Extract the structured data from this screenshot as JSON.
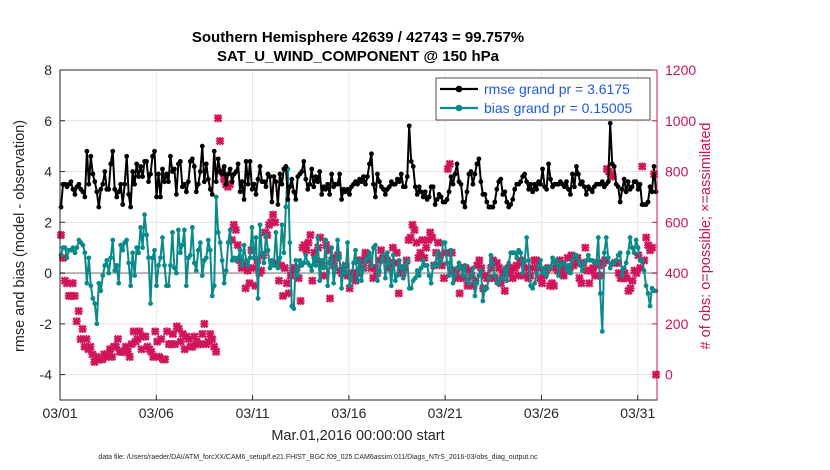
{
  "chart_data": {
    "type": "line",
    "title": "Southern Hemisphere 42639 / 42743 = 99.757%",
    "subtitle": "SAT_U_WIND_COMPONENT @ 150 hPa",
    "xlabel": "Mar.01,2016 00:00:00 start",
    "ylabel": "rmse and bias (model - observation)",
    "ylabel_right": "# of obs: o=possible; ×=assimilated",
    "footnote": "data file: /Users/raeder/DAI/ATM_forcXX/CAM6_setup/f.e21.FHIST_BGC.f09_025.CAM6assim.011/Diags_NTrS_2016-03/obs_diag_output.nc",
    "x_ticks": [
      "03/01",
      "03/06",
      "03/11",
      "03/16",
      "03/21",
      "03/26",
      "03/31"
    ],
    "x_tick_days": [
      1,
      6,
      11,
      16,
      21,
      26,
      31
    ],
    "xlim_days": [
      1,
      32
    ],
    "ylim": [
      -5,
      8
    ],
    "y_ticks": [
      -4,
      -2,
      0,
      2,
      4,
      6,
      8
    ],
    "ylim_right": [
      -100,
      1200
    ],
    "y_ticks_right": [
      0,
      200,
      400,
      600,
      800,
      1000,
      1200
    ],
    "grid": true,
    "legend_position": "top-right",
    "colors": {
      "rmse": "#000000",
      "bias": "#0b8a8a",
      "obs": "#d0155a",
      "zero_line": "#b3b3b3"
    },
    "series": [
      {
        "name": "rmse grand pr = 3.6175",
        "color": "#000000",
        "values": [
          2.6,
          3.5,
          3.5,
          3.4,
          3.5,
          3.6,
          3.3,
          3.1,
          3.4,
          3.5,
          3.3,
          3.2,
          3.0,
          4.8,
          3.5,
          4.6,
          3.9,
          3.6,
          3.2,
          2.6,
          3.3,
          3.5,
          4.0,
          3.3,
          3.3,
          4.3,
          4.8,
          3.3,
          3.0,
          3.2,
          3.5,
          2.7,
          3.5,
          4.6,
          3.1,
          2.6,
          4.0,
          3.5,
          4.3,
          3.8,
          4.2,
          3.8,
          4.4,
          4.4,
          3.6,
          3.9,
          4.6,
          4.8,
          3.0,
          3.9,
          3.0,
          4.1,
          3.6,
          3.9,
          3.6,
          4.6,
          4.0,
          4.1,
          3.1,
          4.3,
          4.4,
          3.4,
          3.5,
          3.2,
          3.6,
          4.4,
          4.5,
          4.2,
          3.2,
          3.5,
          4.0,
          5.0,
          3.6,
          4.3,
          3.7,
          3.3,
          3.1,
          4.8,
          3.6,
          4.5,
          4.0,
          3.9,
          4.2,
          3.5,
          3.9,
          4.1,
          3.6,
          3.9,
          4.0,
          4.3,
          3.2,
          3.6,
          2.9,
          4.4,
          3.5,
          4.4,
          3.3,
          3.5,
          3.1,
          3.7,
          4.2,
          3.6,
          3.6,
          3.4,
          3.9,
          3.8,
          2.8,
          3.8,
          3.6,
          2.7,
          3.9,
          3.5,
          4.1,
          4.2,
          2.9,
          3.4,
          3.7,
          3.2,
          2.9,
          3.8,
          3.9,
          4.0,
          4.4,
          3.7,
          3.3,
          3.5,
          4.1,
          3.4,
          3.8,
          3.6,
          4.0,
          3.1,
          3.4,
          3.3,
          3.5,
          3.1,
          3.9,
          3.4,
          3.5,
          3.5,
          3.9,
          2.9,
          3.3,
          3.2,
          3.3,
          3.1,
          3.4,
          3.5,
          3.6,
          3.5,
          3.7,
          3.6,
          3.8,
          3.5,
          3.8,
          4.3,
          4.7,
          3.5,
          3.0,
          3.9,
          3.6,
          3.4,
          3.3,
          3.1,
          3.3,
          3.4,
          3.6,
          3.5,
          3.5,
          3.7,
          3.6,
          3.9,
          3.4,
          3.4,
          3.8,
          5.8,
          4.4,
          4.2,
          3.4,
          3.1,
          3.4,
          3.2,
          3.0,
          3.2,
          2.9,
          3.0,
          3.4,
          3.4,
          2.7,
          2.9,
          3.1,
          3.0,
          2.8,
          2.8,
          2.9,
          3.2,
          3.8,
          3.5,
          3.9,
          4.3,
          3.6,
          3.5,
          2.8,
          2.6,
          3.2,
          3.9,
          4.0,
          3.5,
          3.9,
          4.3,
          4.5,
          3.6,
          3.1,
          3.1,
          2.8,
          2.6,
          2.6,
          2.6,
          2.8,
          3.3,
          3.6,
          3.7,
          3.1,
          3.2,
          2.8,
          2.6,
          2.7,
          2.9,
          3.3,
          3.5,
          3.5,
          3.6,
          3.8,
          3.9,
          3.6,
          3.3,
          3.5,
          3.2,
          3.5,
          3.3,
          3.6,
          3.5,
          4.1,
          3.4,
          3.3,
          4.3,
          3.7,
          3.4,
          3.5,
          3.5,
          3.5,
          3.6,
          3.5,
          3.4,
          3.6,
          3.3,
          3.1,
          3.9,
          3.4,
          4.2,
          3.9,
          3.5,
          3.6,
          3.4,
          3.1,
          3.4,
          3.3,
          3.2,
          3.4,
          3.5,
          3.5,
          3.5,
          3.6,
          3.4,
          3.5,
          3.6,
          5.9,
          4.3,
          4.2,
          3.5,
          3.4,
          2.8,
          3.3,
          3.7,
          3.2,
          3.6,
          3.3,
          3.4,
          3.6,
          3.6,
          3.3,
          3.5,
          2.7,
          2.7,
          2.7,
          2.8,
          3.4,
          3.2,
          4.2,
          3.2
        ]
      },
      {
        "name": "bias grand pr = 0.15005",
        "color": "#0b8a8a",
        "values": [
          0.7,
          1.0,
          1.0,
          0.6,
          0.9,
          0.9,
          1.0,
          0.8,
          1.0,
          1.3,
          1.2,
          1.1,
          0.8,
          -0.4,
          0.6,
          -0.5,
          -1.0,
          -1.2,
          -2.0,
          -0.4,
          -0.7,
          -0.1,
          0.3,
          0.5,
          0.0,
          0.6,
          1.3,
          0.1,
          0.3,
          -0.4,
          1.1,
          0.9,
          1.2,
          1.3,
          0.4,
          -0.5,
          0.8,
          -0.1,
          1.0,
          0.8,
          1.8,
          1.0,
          2.3,
          1.5,
          0.6,
          -1.2,
          0.6,
          0.9,
          -0.5,
          0.3,
          0.6,
          1.4,
          0.3,
          -0.5,
          -0.5,
          0.3,
          1.6,
          0.2,
          0.0,
          1.7,
          0.8,
          1.1,
          1.7,
          -0.5,
          0.6,
          0.7,
          1.8,
          0.4,
          0.1,
          0.9,
          1.2,
          -0.1,
          0.5,
          0.6,
          1.3,
          0.9,
          -0.9,
          -0.5,
          3.0,
          1.6,
          1.2,
          0.5,
          -0.4,
          0.1,
          1.2,
          1.7,
          0.5,
          0.6,
          0.5,
          0.6,
          0.9,
          0.3,
          1.1,
          0.5,
          0.3,
          0.6,
          1.8,
          0.6,
          1.4,
          -1.0,
          1.9,
          0.8,
          0.4,
          1.5,
          0.9,
          0.2,
          0.5,
          0.3,
          1.6,
          0.2,
          0.6,
          1.9,
          0.8,
          2.6,
          4.1,
          1.2,
          -1.3,
          -1.4,
          0.5,
          -0.1,
          0.5,
          0.3,
          0.4,
          0.7,
          0.4,
          0.3,
          0.1,
          0.6,
          0.3,
          1.4,
          -0.3,
          0.5,
          0.2,
          1.3,
          -0.5,
          0.4,
          1.0,
          -0.4,
          0.2,
          1.3,
          0.6,
          -0.6,
          0.3,
          0.0,
          1.2,
          -0.5,
          -0.2,
          0.4,
          0.9,
          -0.3,
          0.5,
          -0.3,
          0.2,
          0.5,
          0.6,
          0.8,
          0.3,
          1.0,
          1.1,
          -0.3,
          0.1,
          0.5,
          0.7,
          -0.2,
          0.8,
          0.4,
          -0.5,
          0.7,
          -0.3,
          -0.1,
          0.5,
          0.2,
          -0.2,
          0.3,
          0.5,
          -0.6,
          -0.6,
          -0.3,
          -0.2,
          0.1,
          -0.1,
          0.2,
          0.5,
          0.3,
          0.3,
          -0.1,
          -0.4,
          0.3,
          0.3,
          0.8,
          0.3,
          0.5,
          1.2,
          1.2,
          0.4,
          -0.1,
          0.9,
          -0.4,
          -0.1,
          0.2,
          0.4,
          0.2,
          -0.1,
          0.3,
          -0.3,
          -0.4,
          -0.1,
          0.2,
          -0.9,
          -0.4,
          -0.1,
          0.1,
          -1.1,
          -0.6,
          -0.6,
          -0.2,
          0.7,
          0.4,
          -0.1,
          -0.4,
          -0.4,
          -0.2,
          -0.2,
          0.2,
          -0.3,
          0.4,
          0.8,
          0.8,
          0.8,
          0.6,
          0.9,
          0.8,
          0.0,
          0.5,
          1.4,
          0.5,
          -0.5,
          -0.6,
          -0.4,
          0.0,
          0.3,
          0.5,
          0.0,
          0.2,
          -0.1,
          0.2,
          0.2,
          0.6,
          0.4,
          0.5,
          -0.1,
          0.3,
          0.4,
          0.4,
          0.1,
          0.3,
          0.0,
          0.5,
          0.7,
          0.7,
          0.5,
          0.3,
          0.1,
          0.4,
          0.5,
          0.7,
          0.5,
          0.5,
          0.4,
          0.4,
          1.4,
          -0.8,
          -2.3,
          0.8,
          1.4,
          0.6,
          0.2,
          0.4,
          0.4,
          0.5,
          0.7,
          0.8,
          -0.1,
          0.2,
          0.4,
          0.8,
          1.4,
          1.0,
          0.8,
          1.3,
          1.0,
          0.5,
          0.5,
          0.1,
          -0.5,
          -0.8,
          -1.3,
          -0.6,
          -0.7,
          -0.7
        ]
      },
      {
        "name": "assimilated",
        "color": "#d0155a",
        "values": [
          550,
          460,
          370,
          360,
          310,
          310,
          360,
          310,
          210,
          250,
          140,
          180,
          110,
          140,
          100,
          110,
          80,
          50,
          70,
          60,
          60,
          60,
          80,
          70,
          80,
          100,
          70,
          110,
          110,
          140,
          90,
          90,
          90,
          110,
          90,
          70,
          120,
          170,
          130,
          140,
          170,
          100,
          150,
          150,
          110,
          100,
          90,
          70,
          170,
          130,
          70,
          140,
          60,
          60,
          170,
          120,
          120,
          160,
          120,
          190,
          180,
          130,
          160,
          100,
          150,
          140,
          110,
          110,
          150,
          130,
          120,
          120,
          160,
          200,
          120,
          130,
          160,
          140,
          110,
          90,
          1010,
          920,
          800,
          770,
          750,
          740,
          750,
          530,
          590,
          570,
          510,
          450,
          420,
          430,
          340,
          410,
          360,
          490,
          420,
          350,
          450,
          400,
          410,
          470,
          560,
          550,
          590,
          600,
          630,
          600,
          440,
          370,
          430,
          310,
          420,
          360,
          320,
          390,
          410,
          420,
          420,
          380,
          290,
          500,
          510,
          490,
          520,
          550,
          370,
          480,
          450,
          500,
          540,
          430,
          390,
          510,
          490,
          300,
          450,
          430,
          460,
          470,
          410,
          400,
          410,
          430,
          390,
          340,
          400,
          380,
          370,
          400,
          450,
          450,
          420,
          480,
          460,
          450,
          420,
          380,
          420,
          400,
          450,
          490,
          460,
          460,
          450,
          420,
          440,
          500,
          440,
          480,
          320,
          410,
          400,
          420,
          450,
          530,
          540,
          590,
          570,
          520,
          460,
          480,
          530,
          460,
          500,
          530,
          560,
          540,
          430,
          480,
          520,
          470,
          430,
          380,
          480,
          810,
          830,
          480,
          410,
          400,
          380,
          320,
          420,
          380,
          420,
          350,
          410,
          390,
          350,
          370,
          430,
          450,
          420,
          340,
          390,
          380,
          380,
          420,
          450,
          380,
          440,
          420,
          360,
          400,
          330,
          400,
          420,
          400,
          380,
          420,
          430,
          390,
          450,
          440,
          390,
          420,
          380,
          390,
          420,
          450,
          450,
          420,
          380,
          360,
          390,
          410,
          420,
          350,
          360,
          350,
          420,
          410,
          450,
          420,
          390,
          410,
          460,
          420,
          470,
          430,
          440,
          460,
          380,
          360,
          440,
          500,
          410,
          360,
          410,
          420,
          390,
          440,
          430,
          390,
          440,
          450,
          810,
          800,
          790,
          780,
          440,
          440,
          400,
          380,
          380,
          400,
          380,
          330,
          340,
          370,
          410,
          400,
          470,
          420,
          820,
          450,
          540,
          510,
          490,
          500,
          790,
          0
        ]
      }
    ]
  },
  "legend": {
    "rmse_label": "rmse grand pr = 3.6175",
    "bias_label": "bias grand pr = 0.15005"
  }
}
